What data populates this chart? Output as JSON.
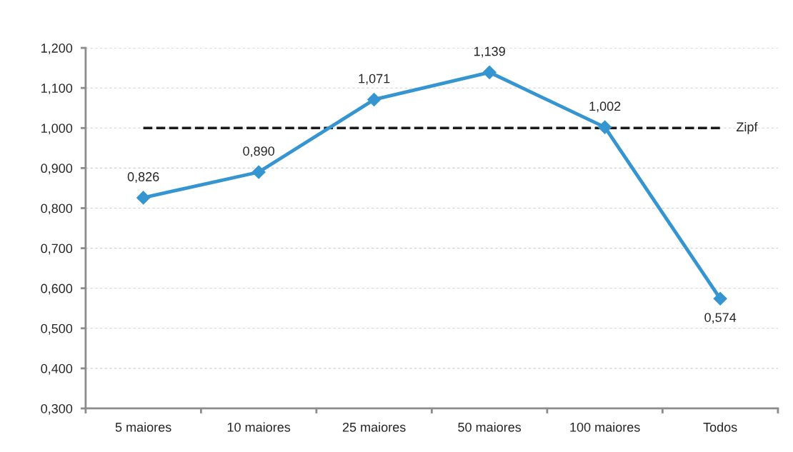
{
  "chart_data": {
    "type": "line",
    "categories": [
      "5 maiores",
      "10 maiores",
      "25 maiores",
      "50 maiores",
      "100 maiores",
      "Todos"
    ],
    "series": [
      {
        "color": "#3595d0",
        "marker": "diamond",
        "line_style": "solid",
        "values": [
          0.826,
          0.89,
          1.071,
          1.139,
          1.002,
          0.574
        ],
        "value_labels": [
          "0,826",
          "0,890",
          "1,071",
          "1,139",
          "1,002",
          "0,574"
        ]
      },
      {
        "name": "Zipf",
        "color": "#1a1a1a",
        "marker": "none",
        "line_style": "dashed",
        "values": [
          1.0,
          1.0,
          1.0,
          1.0,
          1.0,
          1.0
        ]
      }
    ],
    "ylim": [
      0.3,
      1.2
    ],
    "yticks": [
      {
        "value": 0.3,
        "label": "0,300"
      },
      {
        "value": 0.4,
        "label": "0,400"
      },
      {
        "value": 0.5,
        "label": "0,500"
      },
      {
        "value": 0.6,
        "label": "0,600"
      },
      {
        "value": 0.7,
        "label": "0,700"
      },
      {
        "value": 0.8,
        "label": "0,800"
      },
      {
        "value": 0.9,
        "label": "0,900"
      },
      {
        "value": 1.0,
        "label": "1,000"
      },
      {
        "value": 1.1,
        "label": "1,100"
      },
      {
        "value": 1.2,
        "label": "1,200"
      }
    ],
    "grid": "y",
    "legend": false
  }
}
